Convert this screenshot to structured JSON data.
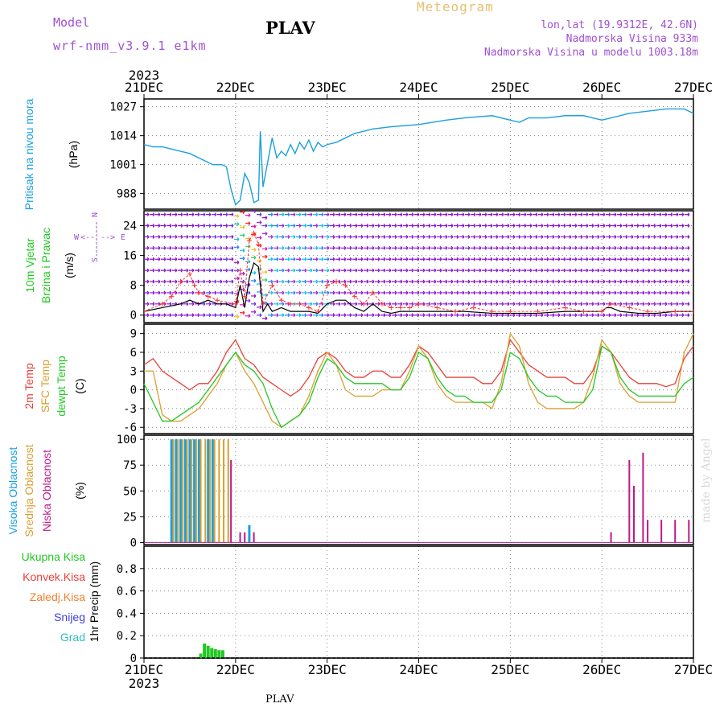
{
  "header": {
    "model_label": "Model",
    "model_name": "wrf-nmm_v3.9.1 e1km",
    "station": "PLAV",
    "product": "Meteogram",
    "coords": "lon,lat (19.9312E, 42.6N)",
    "elevation": "Nadmorska Visina 933m",
    "model_elevation": "Nadmorska Visina u modelu 1003.18m"
  },
  "footer": {
    "station": "PLAV",
    "credit": "made by Angel"
  },
  "colors": {
    "pressure": "#1aa0e0",
    "temp2m": "#e8403a",
    "sfc": "#d9a030",
    "dewpt": "#22c822",
    "high_cloud": "#1aa0e0",
    "mid_cloud": "#d9a030",
    "low_cloud": "#c0188a",
    "precip": "#22c822",
    "wind_speed": "#000000",
    "gust": "#ff3030",
    "header": "#a050d0"
  },
  "chart_data": {
    "type": "meteogram",
    "time_axis": {
      "year": "2023",
      "ticks": [
        "21DEC",
        "22DEC",
        "23DEC",
        "24DEC",
        "25DEC",
        "26DEC",
        "27DEC"
      ],
      "start_day": 21,
      "end_day": 27
    },
    "panels": [
      {
        "id": "pressure",
        "type": "line",
        "ylabel": [
          "Pritisak na nivou mora",
          "(hPa)"
        ],
        "yticks": [
          988,
          1001,
          1014,
          1027
        ],
        "ylim": [
          981,
          1028
        ],
        "grid": true,
        "series": [
          {
            "x": [
              21.0,
              21.1,
              21.2,
              21.3,
              21.4,
              21.5,
              21.6,
              21.7,
              21.75,
              21.85,
              21.9,
              21.95,
              22.0,
              22.05,
              22.1,
              22.15,
              22.2,
              22.25,
              22.27,
              22.3,
              22.35,
              22.4,
              22.45,
              22.5,
              22.55,
              22.6,
              22.65,
              22.7,
              22.75,
              22.8,
              22.85,
              22.9,
              22.95,
              23.0,
              23.1,
              23.2,
              23.3,
              23.5,
              23.7,
              24.0,
              24.3,
              24.5,
              24.8,
              25.0,
              25.1,
              25.2,
              25.4,
              25.6,
              25.8,
              26.0,
              26.1,
              26.3,
              26.5,
              26.7,
              26.9,
              27.0
            ],
            "y": [
              1010,
              1009,
              1009,
              1008,
              1007,
              1006,
              1004,
              1002,
              1001,
              1001,
              1000,
              990,
              983,
              985,
              997,
              993,
              984,
              985,
              1016,
              991,
              1002,
              1013,
              1004,
              1007,
              1005,
              1010,
              1006,
              1011,
              1008,
              1012,
              1007,
              1011,
              1009,
              1010,
              1011,
              1013,
              1015,
              1017,
              1018,
              1019,
              1021,
              1022,
              1023,
              1021,
              1020,
              1022,
              1022,
              1023,
              1023,
              1021,
              1022,
              1024,
              1025,
              1026,
              1026,
              1024
            ]
          }
        ]
      },
      {
        "id": "wind",
        "type": "line+barbs",
        "ylabel": [
          "10m Vjetar",
          "Brzina i Pravac",
          "(m/s)"
        ],
        "yticks": [
          0,
          8,
          16,
          24
        ],
        "ylim": [
          -2,
          28
        ],
        "grid": true,
        "compass": {
          "n": "N",
          "s": "S",
          "e": "E",
          "w": "W",
          "arrow_left": "<--",
          "arrow_right": "-->"
        },
        "speed": {
          "x": [
            21.0,
            21.2,
            21.4,
            21.5,
            21.6,
            21.7,
            21.8,
            21.9,
            22.0,
            22.05,
            22.1,
            22.15,
            22.2,
            22.25,
            22.3,
            22.35,
            22.4,
            22.5,
            22.6,
            22.7,
            22.8,
            22.9,
            23.0,
            23.1,
            23.2,
            23.3,
            23.4,
            23.5,
            23.6,
            23.7,
            23.8,
            23.9,
            24.0,
            24.2,
            24.5,
            24.8,
            25.0,
            25.3,
            25.6,
            26.0,
            26.05,
            26.1,
            26.2,
            26.4,
            26.6,
            26.8,
            27.0
          ],
          "y": [
            1,
            2,
            3,
            4,
            3,
            4,
            3,
            3,
            2,
            8,
            2,
            10,
            14,
            13,
            1,
            3,
            1,
            2,
            1,
            1,
            1,
            0.5,
            3,
            4,
            4,
            2,
            1,
            3,
            1,
            0.5,
            1,
            1,
            1,
            1,
            1,
            0.5,
            0.5,
            0.5,
            1,
            1,
            2,
            2,
            1,
            0.5,
            0.5,
            1,
            1
          ]
        },
        "gust": {
          "x": [
            21.0,
            21.2,
            21.3,
            21.4,
            21.5,
            21.55,
            21.6,
            21.7,
            21.8,
            22.0,
            22.05,
            22.1,
            22.15,
            22.2,
            22.25,
            22.3,
            22.4,
            22.5,
            22.6,
            22.7,
            22.8,
            22.9,
            23.0,
            23.1,
            23.2,
            23.3,
            23.4,
            23.5,
            23.6,
            23.7,
            23.8,
            23.9,
            24.0,
            24.2,
            24.4,
            24.6,
            24.8,
            25.0,
            25.3,
            25.6,
            25.8,
            26.0,
            26.1,
            26.3,
            26.5,
            26.8,
            27.0
          ],
          "y": [
            1,
            3,
            5,
            9,
            11,
            8,
            6,
            5,
            4,
            3,
            12,
            5,
            20,
            22,
            19,
            3,
            8,
            4,
            3,
            3,
            2,
            1,
            8,
            9,
            8,
            5,
            3,
            6,
            3,
            2,
            2,
            2,
            3,
            2,
            1,
            2,
            1,
            1,
            1,
            2,
            1,
            1,
            3,
            2,
            1,
            1,
            1
          ]
        }
      },
      {
        "id": "temperature",
        "type": "line",
        "ylabel": [
          "2m Temp",
          "SFC Temp",
          "dewpt Temp",
          "(C)"
        ],
        "yticks": [
          -6,
          -3,
          0,
          3,
          6,
          9
        ],
        "ylim": [
          -7,
          10
        ],
        "grid": true,
        "series": [
          {
            "name": "2m Temp",
            "x": [
              21.0,
              21.1,
              21.2,
              21.3,
              21.4,
              21.5,
              21.6,
              21.7,
              21.8,
              21.9,
              22.0,
              22.1,
              22.2,
              22.3,
              22.4,
              22.5,
              22.6,
              22.7,
              22.8,
              22.9,
              23.0,
              23.1,
              23.2,
              23.3,
              23.4,
              23.5,
              23.6,
              23.7,
              23.8,
              23.9,
              24.0,
              24.1,
              24.2,
              24.3,
              24.4,
              24.5,
              24.6,
              24.7,
              24.8,
              24.9,
              25.0,
              25.1,
              25.2,
              25.3,
              25.4,
              25.5,
              25.6,
              25.7,
              25.8,
              25.9,
              26.0,
              26.1,
              26.2,
              26.3,
              26.4,
              26.5,
              26.6,
              26.7,
              26.8,
              26.9,
              27.0
            ],
            "y": [
              4,
              5,
              3,
              2,
              1,
              0,
              1,
              1,
              3,
              6,
              8,
              5,
              4,
              2,
              1,
              0,
              -1,
              0,
              2,
              5,
              6,
              5,
              3,
              2,
              2,
              3,
              3,
              2,
              2,
              4,
              7,
              6,
              4,
              2,
              2,
              2,
              2,
              1,
              1,
              3,
              8,
              6,
              4,
              3,
              2,
              2,
              2,
              1,
              1,
              3,
              7,
              6,
              4,
              2,
              1,
              1,
              1,
              0.5,
              1,
              5,
              7
            ]
          },
          {
            "name": "SFC Temp",
            "x": [
              21.0,
              21.1,
              21.2,
              21.3,
              21.4,
              21.5,
              21.6,
              21.7,
              21.8,
              21.9,
              22.0,
              22.1,
              22.2,
              22.3,
              22.4,
              22.5,
              22.6,
              22.7,
              22.8,
              22.9,
              23.0,
              23.1,
              23.2,
              23.3,
              23.4,
              23.5,
              23.6,
              23.7,
              23.8,
              23.9,
              24.0,
              24.1,
              24.2,
              24.3,
              24.4,
              24.5,
              24.6,
              24.7,
              24.8,
              24.9,
              25.0,
              25.1,
              25.2,
              25.3,
              25.4,
              25.5,
              25.6,
              25.7,
              25.8,
              25.9,
              26.0,
              26.1,
              26.2,
              26.3,
              26.4,
              26.5,
              26.6,
              26.7,
              26.8,
              26.9,
              27.0
            ],
            "y": [
              3,
              3,
              -4,
              -5,
              -5,
              -4,
              -3,
              -1,
              1,
              4,
              6,
              3,
              1,
              -2,
              -5,
              -6,
              -5,
              -4,
              -1,
              3,
              6,
              4,
              0,
              -1,
              -1,
              -1,
              0,
              0,
              0,
              3,
              7,
              5,
              1,
              -1,
              -2,
              -2,
              -2,
              -2,
              -3,
              1,
              9,
              7,
              1,
              -2,
              -3,
              -3,
              -3,
              -3,
              -2,
              2,
              8,
              6,
              1,
              -1,
              -2,
              -2,
              -2,
              -2,
              -2,
              6,
              9
            ]
          },
          {
            "name": "dewpt Temp",
            "x": [
              21.0,
              21.1,
              21.2,
              21.3,
              21.4,
              21.5,
              21.6,
              21.7,
              21.8,
              21.9,
              22.0,
              22.1,
              22.2,
              22.3,
              22.4,
              22.5,
              22.6,
              22.7,
              22.8,
              22.9,
              23.0,
              23.1,
              23.2,
              23.3,
              23.4,
              23.5,
              23.6,
              23.7,
              23.8,
              23.9,
              24.0,
              24.1,
              24.2,
              24.3,
              24.4,
              24.5,
              24.6,
              24.7,
              24.8,
              24.9,
              25.0,
              25.1,
              25.2,
              25.3,
              25.4,
              25.5,
              25.6,
              25.7,
              25.8,
              25.9,
              26.0,
              26.1,
              26.2,
              26.3,
              26.4,
              26.5,
              26.6,
              26.7,
              26.8,
              26.9,
              27.0
            ],
            "y": [
              1,
              -2,
              -5,
              -5,
              -4,
              -3,
              -2,
              0,
              2,
              4,
              6,
              4,
              3,
              1,
              -3,
              -6,
              -5,
              -4,
              -2,
              2,
              5,
              4,
              2,
              1,
              1,
              1,
              1,
              0,
              0,
              2,
              6,
              5,
              2,
              0,
              -1,
              -1,
              -2,
              -2,
              -2,
              0,
              6,
              5,
              2,
              0,
              -1,
              -1,
              -2,
              -2,
              -2,
              0,
              7,
              6,
              2,
              0,
              -1,
              -1,
              -1,
              -1,
              -1,
              1,
              2
            ]
          }
        ]
      },
      {
        "id": "cloud",
        "type": "bar",
        "ylabel": [
          "Visoka Oblacnost",
          "Srednja Oblacnost",
          "Niska Oblacnost",
          "(%)"
        ],
        "yticks": [
          0,
          25,
          50,
          75,
          100
        ],
        "ylim": [
          0,
          100
        ],
        "grid": true,
        "series": [
          {
            "name": "Visoka Oblacnost",
            "x": [
              21.3,
              21.35,
              21.4,
              21.45,
              21.5,
              21.55,
              21.6,
              21.7,
              21.75,
              22.15
            ],
            "y": [
              100,
              100,
              100,
              100,
              100,
              100,
              100,
              100,
              100,
              17
            ]
          },
          {
            "name": "Srednja Oblacnost",
            "x": [
              21.32,
              21.37,
              21.42,
              21.47,
              21.52,
              21.57,
              21.62,
              21.67,
              21.72,
              21.77,
              21.82,
              21.87,
              21.92
            ],
            "y": [
              100,
              100,
              100,
              100,
              100,
              100,
              100,
              100,
              100,
              100,
              100,
              100,
              100
            ]
          },
          {
            "name": "Niska Oblacnost",
            "x": [
              21.95,
              22.05,
              22.1,
              22.2,
              26.1,
              26.3,
              26.35,
              26.45,
              26.5,
              26.65,
              26.8,
              26.95
            ],
            "y": [
              80,
              10,
              10,
              10,
              10,
              80,
              55,
              87,
              22,
              22,
              22,
              22
            ]
          }
        ]
      },
      {
        "id": "precip",
        "type": "bar",
        "ylabel": [
          "1hr Precip",
          "(mm)"
        ],
        "legend": [
          "Ukupna Kisa",
          "Konvek.Kisa",
          "Zaledj.Kisa",
          "Snijeg",
          "Grad"
        ],
        "yticks": [
          0,
          0.2,
          0.4,
          0.6,
          0.8
        ],
        "ylim": [
          0,
          1
        ],
        "grid": true,
        "series": [
          {
            "name": "Ukupna Kisa",
            "x": [
              21.62,
              21.66,
              21.7,
              21.74,
              21.78,
              21.82,
              21.86
            ],
            "y": [
              0.04,
              0.13,
              0.11,
              0.09,
              0.08,
              0.07,
              0.07
            ]
          }
        ]
      }
    ]
  }
}
